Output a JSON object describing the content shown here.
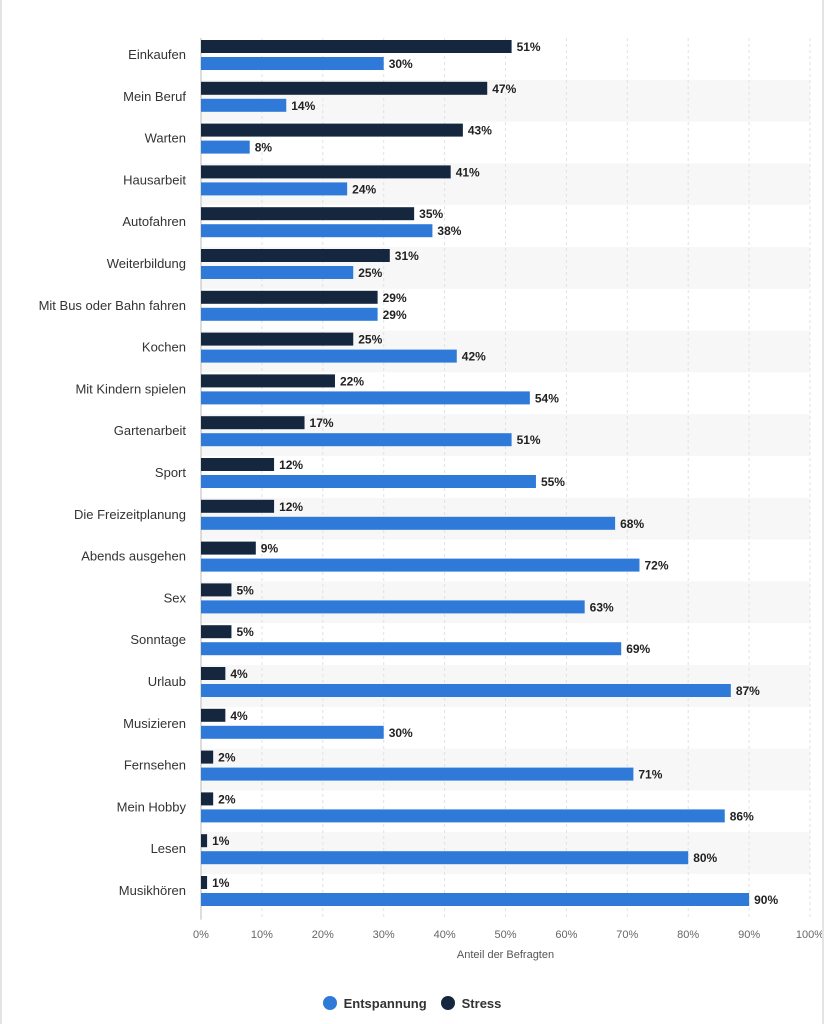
{
  "chart_data": {
    "type": "bar",
    "orientation": "horizontal",
    "categories": [
      "Einkaufen",
      "Mein Beruf",
      "Warten",
      "Hausarbeit",
      "Autofahren",
      "Weiterbildung",
      "Mit Bus oder Bahn fahren",
      "Kochen",
      "Mit Kindern spielen",
      "Gartenarbeit",
      "Sport",
      "Die Freizeitplanung",
      "Abends ausgehen",
      "Sex",
      "Sonntage",
      "Urlaub",
      "Musizieren",
      "Fernsehen",
      "Mein Hobby",
      "Lesen",
      "Musikhören"
    ],
    "series": [
      {
        "name": "Stress",
        "color": "#15273f",
        "values": [
          51,
          47,
          43,
          41,
          35,
          31,
          29,
          25,
          22,
          17,
          12,
          12,
          9,
          5,
          5,
          4,
          4,
          2,
          2,
          1,
          1
        ],
        "labels": [
          "51%",
          "47%",
          "43%",
          "41%",
          "35%",
          "31%",
          "29%",
          "25%",
          "22%",
          "17%",
          "12%",
          "12%",
          "9%",
          "5%",
          "5%",
          "4%",
          "4%",
          "2%",
          "2%",
          "1%",
          "1%"
        ]
      },
      {
        "name": "Entspannung",
        "color": "#2f7ad8",
        "values": [
          30,
          14,
          8,
          24,
          38,
          25,
          29,
          42,
          54,
          51,
          55,
          68,
          72,
          63,
          69,
          87,
          30,
          71,
          86,
          80,
          90
        ],
        "labels": [
          "30%",
          "14%",
          "8%",
          "24%",
          "38%",
          "25%",
          "29%",
          "42%",
          "54%",
          "51%",
          "55%",
          "68%",
          "72%",
          "63%",
          "69%",
          "87%",
          "30%",
          "71%",
          "86%",
          "80%",
          "90%"
        ]
      }
    ],
    "xlim": [
      0,
      100
    ],
    "x_ticks": [
      "0%",
      "10%",
      "20%",
      "30%",
      "40%",
      "50%",
      "60%",
      "70%",
      "80%",
      "90%",
      "100%"
    ],
    "xlabel": "Anteil der Befragten",
    "ylabel": "",
    "title": "",
    "grid": true,
    "legend_position": "bottom-center",
    "legend": [
      {
        "name": "Entspannung",
        "color": "#2f7ad8"
      },
      {
        "name": "Stress",
        "color": "#15273f"
      }
    ]
  }
}
